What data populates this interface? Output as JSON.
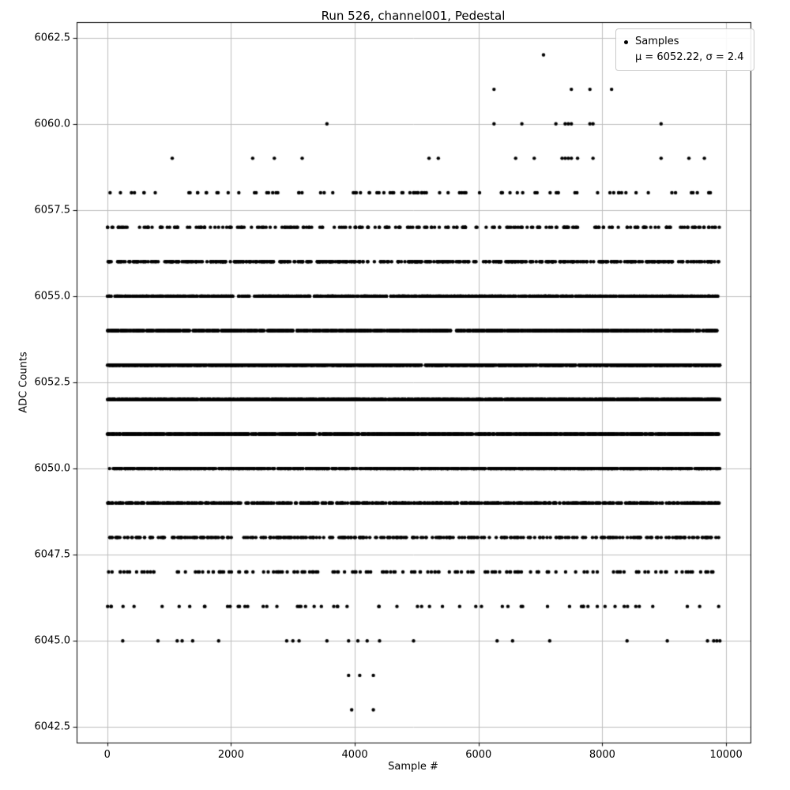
{
  "chart_data": {
    "type": "scatter",
    "title": "Run 526, channel001, Pedestal",
    "xlabel": "Sample #",
    "ylabel": "ADC Counts",
    "legend": {
      "samples_label": "Samples",
      "stats_label": "μ = 6052.22, σ = 2.4"
    },
    "legend_position": "upper right",
    "stats": {
      "mu": 6052.22,
      "sigma": 2.4
    },
    "marker": {
      "color": "#000000",
      "size": 4
    },
    "grid": true,
    "grid_color": "#bdbdbd",
    "xlim": [
      -495,
      10395
    ],
    "ylim": [
      6042.05,
      6062.95
    ],
    "xticks": [
      0,
      2000,
      4000,
      6000,
      8000,
      10000
    ],
    "yticks": [
      6042.5,
      6045.0,
      6047.5,
      6050.0,
      6052.5,
      6055.0,
      6057.5,
      6060.0,
      6062.5
    ],
    "x_range": [
      0,
      9900
    ],
    "bands": [
      {
        "adc": 6062,
        "xs": [
          7050
        ]
      },
      {
        "adc": 6061,
        "xs": [
          6250,
          7500,
          7800,
          8150
        ]
      },
      {
        "adc": 6060,
        "xs": [
          3550,
          6250,
          6700,
          7250,
          7400,
          7450,
          7500,
          7800,
          7850,
          8950
        ]
      },
      {
        "adc": 6059,
        "xs": [
          1050,
          2350,
          2700,
          3150,
          5200,
          5350,
          6600,
          6900,
          7350,
          7400,
          7450,
          7500,
          7600,
          7850,
          8950,
          9400,
          9650
        ]
      },
      {
        "adc": 6058,
        "count": 92
      },
      {
        "adc": 6057,
        "count": 235
      },
      {
        "adc": 6056,
        "count": 480
      },
      {
        "adc": 6055,
        "count": 860
      },
      {
        "adc": 6054,
        "count": 1250
      },
      {
        "adc": 6053,
        "count": 1550
      },
      {
        "adc": 6052,
        "count": 1630
      },
      {
        "adc": 6051,
        "count": 1420
      },
      {
        "adc": 6050,
        "count": 1060
      },
      {
        "adc": 6049,
        "count": 660
      },
      {
        "adc": 6048,
        "count": 340
      },
      {
        "adc": 6047,
        "count": 160
      },
      {
        "adc": 6046,
        "count": 60
      },
      {
        "adc": 6045,
        "xs": [
          250,
          820,
          1130,
          1210,
          1380,
          1800,
          2900,
          3000,
          3100,
          3550,
          3900,
          4050,
          4200,
          4400,
          4950,
          6300,
          6550,
          7150,
          8400,
          9050,
          9700,
          9800,
          9850,
          9900
        ]
      },
      {
        "adc": 6044,
        "xs": [
          3900,
          4080,
          4300
        ]
      },
      {
        "adc": 6043,
        "xs": [
          3950,
          4300
        ]
      }
    ]
  }
}
